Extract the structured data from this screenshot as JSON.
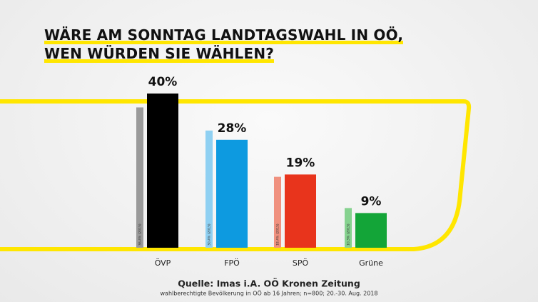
{
  "chart_data": {
    "type": "bar",
    "title": [
      "WÄRE AM SONNTAG LANDTAGSWAHL IN OÖ,",
      "WEN WÜRDEN SIE WÄHLEN?"
    ],
    "categories": [
      "ÖVP",
      "FPÖ",
      "SPÖ",
      "Grüne"
    ],
    "series": [
      {
        "colors": [
          "#9a9a9a",
          "#8fd0f2",
          "#f0917f",
          "#86d28f"
        ],
        "values": [
          36.4,
          30.4,
          18.4,
          10.3
        ],
        "value_labels": [
          "36,4% (2015)",
          "30,4% (2015)",
          "18,4% (2015)",
          "10,3% (2015)"
        ]
      },
      {
        "colors": [
          "#000000",
          "#0d9ae0",
          "#e8341c",
          "#13a538"
        ],
        "values": [
          40,
          28,
          19,
          9
        ],
        "value_labels": [
          "40%",
          "28%",
          "19%",
          "9%"
        ]
      }
    ],
    "source": "Quelle: Imas i.A. OÖ Kronen Zeitung",
    "note": "wahlberechtigte Bevölkerung in OÖ ab 16 Jahren; n=800; 20.-30. Aug. 2018"
  }
}
